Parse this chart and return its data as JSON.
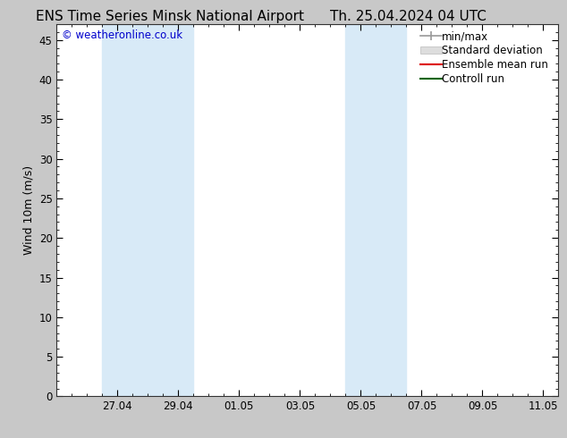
{
  "title_left": "ENS Time Series Minsk National Airport",
  "title_right": "Th. 25.04.2024 04 UTC",
  "ylabel": "Wind 10m (m/s)",
  "watermark": "© weatheronline.co.uk",
  "watermark_color": "#0000cc",
  "background_color": "#c8c8c8",
  "plot_bg_color": "#ffffff",
  "ylim": [
    0,
    47
  ],
  "yticks": [
    0,
    5,
    10,
    15,
    20,
    25,
    30,
    35,
    40,
    45
  ],
  "xlim_min": 0.0,
  "xlim_max": 16.5,
  "xtick_labels": [
    "27.04",
    "29.04",
    "01.05",
    "03.05",
    "05.05",
    "07.05",
    "09.05",
    "11.05"
  ],
  "xtick_positions": [
    2.0,
    4.0,
    6.0,
    8.0,
    10.0,
    12.0,
    14.0,
    16.0
  ],
  "shaded_bands": [
    {
      "x_start": 1.5,
      "x_end": 4.5,
      "color": "#d8eaf7"
    },
    {
      "x_start": 9.5,
      "x_end": 11.5,
      "color": "#d8eaf7"
    }
  ],
  "legend_items": [
    {
      "label": "min/max",
      "color": "#aaaaaa",
      "style": "line_with_caps"
    },
    {
      "label": "Standard deviation",
      "color": "#cccccc",
      "style": "fill"
    },
    {
      "label": "Ensemble mean run",
      "color": "#ff0000",
      "style": "line"
    },
    {
      "label": "Controll run",
      "color": "#006400",
      "style": "line"
    }
  ],
  "title_fontsize": 11,
  "tick_label_fontsize": 8.5,
  "ylabel_fontsize": 9,
  "legend_fontsize": 8.5,
  "watermark_fontsize": 8.5,
  "spine_color": "#333333"
}
